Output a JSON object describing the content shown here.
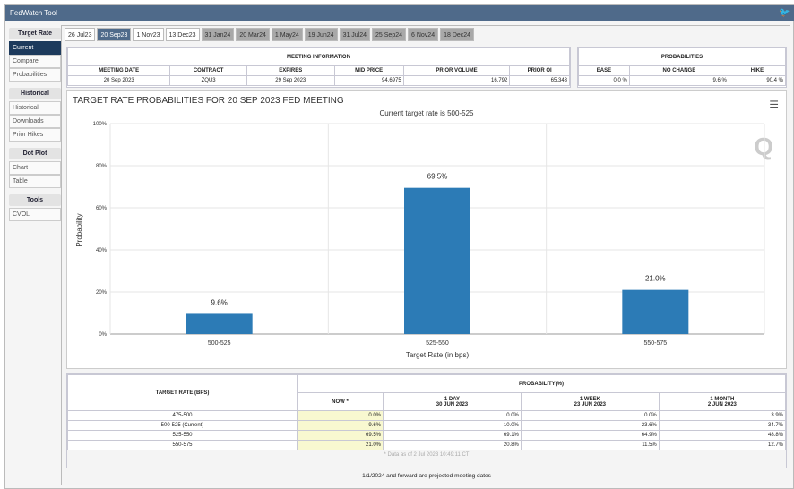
{
  "app": {
    "title": "FedWatch Tool",
    "twitter_icon": "twitter-icon"
  },
  "sidebar": [
    {
      "header": "Target Rate",
      "items": [
        "Current",
        "Compare",
        "Probabilities"
      ]
    },
    {
      "header": "Historical",
      "items": [
        "Historical",
        "Downloads",
        "Prior Hikes"
      ]
    },
    {
      "header": "Dot Plot",
      "items": [
        "Chart",
        "Table"
      ]
    },
    {
      "header": "Tools",
      "items": [
        "CVOL"
      ]
    }
  ],
  "tabs": [
    "26 Jul23",
    "20 Sep23",
    "1 Nov23",
    "13 Dec23",
    "31 Jan24",
    "20 Mar24",
    "1 May24",
    "19 Jun24",
    "31 Jul24",
    "25 Sep24",
    "6 Nov24",
    "18 Dec24"
  ],
  "meeting_info": {
    "title": "MEETING INFORMATION",
    "headers": [
      "MEETING DATE",
      "CONTRACT",
      "EXPIRES",
      "MID PRICE",
      "PRIOR VOLUME",
      "PRIOR OI"
    ],
    "values": [
      "20 Sep 2023",
      "ZQU3",
      "29 Sep 2023",
      "94.6975",
      "16,792",
      "65,343"
    ]
  },
  "probabilities": {
    "title": "PROBABILITIES",
    "headers": [
      "EASE",
      "NO CHANGE",
      "HIKE"
    ],
    "values": [
      "0.0 %",
      "9.6 %",
      "90.4 %"
    ]
  },
  "chart_data": {
    "type": "bar",
    "title": "TARGET RATE PROBABILITIES FOR 20 SEP 2023 FED MEETING",
    "subtitle": "Current target rate is 500-525",
    "xlabel": "Target Rate (in bps)",
    "ylabel": "Probability",
    "categories": [
      "500-525",
      "525-550",
      "550-575"
    ],
    "values": [
      9.6,
      69.5,
      21.0
    ],
    "labels": [
      "9.6%",
      "69.5%",
      "21.0%"
    ],
    "ylim": [
      0,
      100
    ],
    "yticks": [
      "0%",
      "20%",
      "40%",
      "60%",
      "80%",
      "100%"
    ],
    "color": "#2c7bb6"
  },
  "prob_table": {
    "col_header": "TARGET RATE (BPS)",
    "group_header": "PROBABILITY(%)",
    "cols": [
      {
        "l1": "NOW *",
        "l2": ""
      },
      {
        "l1": "1 DAY",
        "l2": "30 JUN 2023"
      },
      {
        "l1": "1 WEEK",
        "l2": "23 JUN 2023"
      },
      {
        "l1": "1 MONTH",
        "l2": "2 JUN 2023"
      }
    ],
    "rows": [
      [
        "475-500",
        "0.0%",
        "0.0%",
        "0.0%",
        "3.9%"
      ],
      [
        "500-525 (Current)",
        "9.6%",
        "10.0%",
        "23.6%",
        "34.7%"
      ],
      [
        "525-550",
        "69.5%",
        "69.1%",
        "64.9%",
        "48.8%"
      ],
      [
        "550-575",
        "21.0%",
        "20.8%",
        "11.5%",
        "12.7%"
      ]
    ],
    "note": "* Data as of 2 Jul 2023 10:49:11 CT"
  },
  "footer": "1/1/2024 and forward are projected meeting dates"
}
